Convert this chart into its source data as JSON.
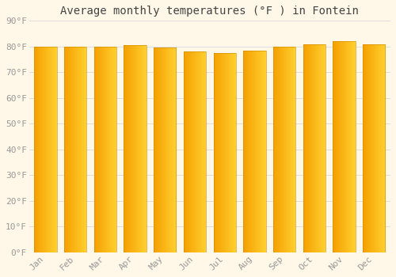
{
  "title": "Average monthly temperatures (°F ) in Fontein",
  "months": [
    "Jan",
    "Feb",
    "Mar",
    "Apr",
    "May",
    "Jun",
    "Jul",
    "Aug",
    "Sep",
    "Oct",
    "Nov",
    "Dec"
  ],
  "values": [
    80,
    80,
    80,
    80.5,
    79.5,
    78,
    77.5,
    78.5,
    80,
    81,
    82,
    81
  ],
  "bar_color_main": "#FFBE00",
  "bar_color_edge": "#F0A000",
  "background_color": "#FFF8E8",
  "grid_color": "#DDDDDD",
  "ylim": [
    0,
    90
  ],
  "yticks": [
    0,
    10,
    20,
    30,
    40,
    50,
    60,
    70,
    80,
    90
  ],
  "ytick_labels": [
    "0°F",
    "10°F",
    "20°F",
    "30°F",
    "40°F",
    "50°F",
    "60°F",
    "70°F",
    "80°F",
    "90°F"
  ],
  "title_fontsize": 10,
  "tick_fontsize": 8,
  "tick_color": "#999999",
  "title_color": "#444444",
  "bar_width": 0.75
}
